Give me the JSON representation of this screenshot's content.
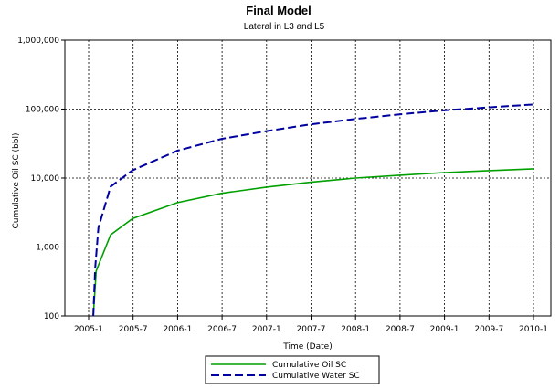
{
  "chart_data": {
    "type": "line",
    "title": "Final Model",
    "subtitle": "Lateral in L3 and L5",
    "xlabel": "Time (Date)",
    "ylabel": "Cumulative Oil SC (bbl)",
    "yscale": "log",
    "ylim": [
      100,
      1000000
    ],
    "xlim": [
      "2005-01-01",
      "2010-01-01"
    ],
    "grid": true,
    "legend_position": "bottom",
    "x_ticks": [
      "2005-1",
      "2005-7",
      "2006-1",
      "2006-7",
      "2007-1",
      "2007-7",
      "2008-1",
      "2008-7",
      "2009-1",
      "2009-7",
      "2010-1"
    ],
    "y_ticks": [
      "100",
      "1,000",
      "10,000",
      "100,000",
      "1,000,000"
    ],
    "series": [
      {
        "name": "Cumulative Oil SC",
        "color": "#00a000",
        "style": "solid",
        "points": [
          [
            "2005-01-20",
            100
          ],
          [
            "2005-02-01",
            450
          ],
          [
            "2005-04-01",
            1500
          ],
          [
            "2005-07-01",
            2600
          ],
          [
            "2006-01-01",
            4400
          ],
          [
            "2006-07-01",
            6000
          ],
          [
            "2007-01-01",
            7400
          ],
          [
            "2007-07-01",
            8700
          ],
          [
            "2008-01-01",
            10000
          ],
          [
            "2008-07-01",
            11000
          ],
          [
            "2009-01-01",
            12000
          ],
          [
            "2009-07-01",
            12800
          ],
          [
            "2010-01-01",
            13600
          ]
        ]
      },
      {
        "name": "Cumulative Water SC",
        "color": "#0000a0",
        "style": "dashed",
        "points": [
          [
            "2005-01-20",
            100
          ],
          [
            "2005-01-28",
            500
          ],
          [
            "2005-02-10",
            1900
          ],
          [
            "2005-04-01",
            7500
          ],
          [
            "2005-07-01",
            13000
          ],
          [
            "2006-01-01",
            25000
          ],
          [
            "2006-07-01",
            37000
          ],
          [
            "2007-01-01",
            48000
          ],
          [
            "2007-07-01",
            60000
          ],
          [
            "2008-01-01",
            72000
          ],
          [
            "2008-07-01",
            84000
          ],
          [
            "2009-01-01",
            96000
          ],
          [
            "2009-07-01",
            106000
          ],
          [
            "2010-01-01",
            117000
          ]
        ]
      }
    ]
  }
}
